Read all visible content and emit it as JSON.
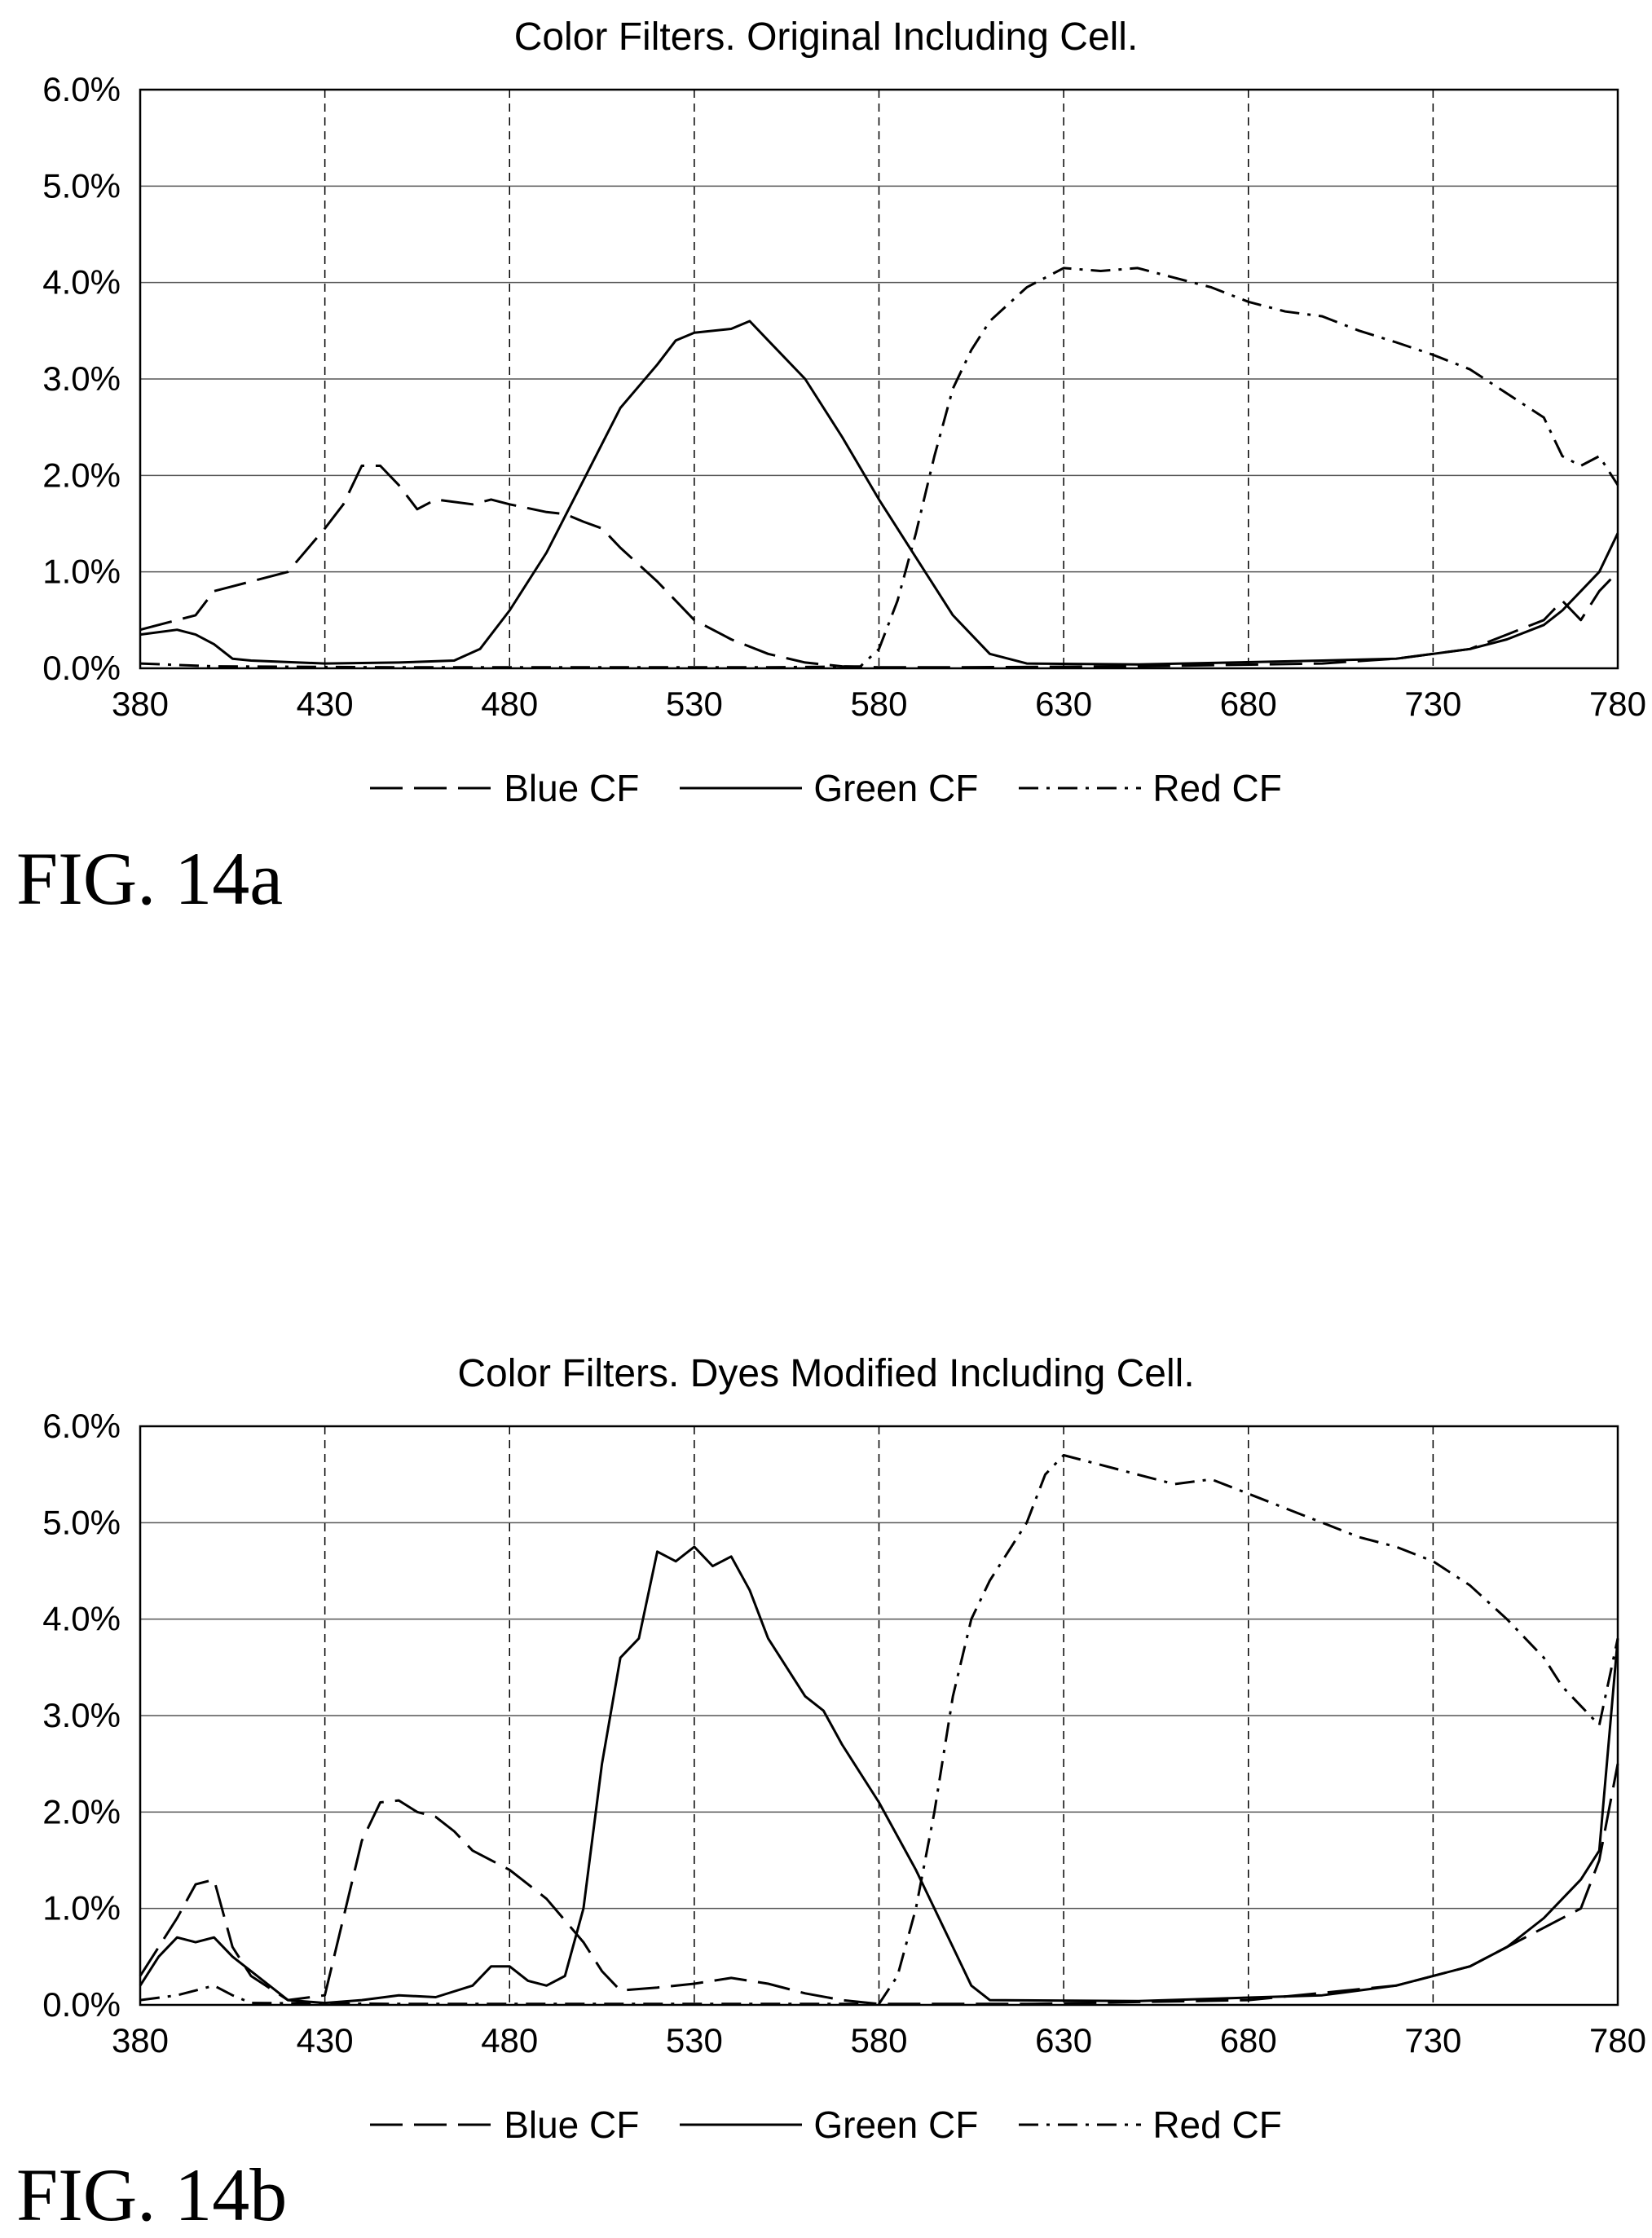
{
  "figures": [
    {
      "label": "FIG. 14a",
      "chart_data": {
        "type": "line",
        "title": "Color Filters. Original Including Cell.",
        "xlabel": "",
        "ylabel": "",
        "xlim": [
          380,
          780
        ],
        "ylim": [
          0,
          6
        ],
        "x_ticks": [
          "380",
          "430",
          "480",
          "530",
          "580",
          "630",
          "680",
          "730",
          "780"
        ],
        "y_ticks": [
          "0.0%",
          "1.0%",
          "2.0%",
          "3.0%",
          "4.0%",
          "5.0%",
          "6.0%"
        ],
        "grid": {
          "horizontal": "solid",
          "vertical": "dashed"
        },
        "legend_position": "bottom",
        "series": [
          {
            "name": "Blue CF",
            "style": "long-dash",
            "points": [
              [
                380,
                0.4
              ],
              [
                390,
                0.5
              ],
              [
                395,
                0.55
              ],
              [
                400,
                0.8
              ],
              [
                405,
                0.85
              ],
              [
                410,
                0.9
              ],
              [
                420,
                1.0
              ],
              [
                430,
                1.45
              ],
              [
                435,
                1.7
              ],
              [
                440,
                2.1
              ],
              [
                445,
                2.1
              ],
              [
                450,
                1.9
              ],
              [
                455,
                1.65
              ],
              [
                460,
                1.75
              ],
              [
                470,
                1.7
              ],
              [
                475,
                1.75
              ],
              [
                480,
                1.7
              ],
              [
                490,
                1.62
              ],
              [
                495,
                1.6
              ],
              [
                500,
                1.52
              ],
              [
                505,
                1.45
              ],
              [
                510,
                1.25
              ],
              [
                520,
                0.9
              ],
              [
                530,
                0.5
              ],
              [
                540,
                0.3
              ],
              [
                550,
                0.15
              ],
              [
                560,
                0.06
              ],
              [
                570,
                0.02
              ],
              [
                580,
                0.01
              ],
              [
                600,
                0.01
              ],
              [
                650,
                0.02
              ],
              [
                700,
                0.05
              ],
              [
                720,
                0.1
              ],
              [
                740,
                0.2
              ],
              [
                750,
                0.35
              ],
              [
                760,
                0.5
              ],
              [
                765,
                0.7
              ],
              [
                770,
                0.5
              ],
              [
                775,
                0.8
              ],
              [
                780,
                1.0
              ]
            ]
          },
          {
            "name": "Green CF",
            "style": "solid",
            "points": [
              [
                380,
                0.35
              ],
              [
                390,
                0.4
              ],
              [
                395,
                0.35
              ],
              [
                400,
                0.25
              ],
              [
                405,
                0.1
              ],
              [
                410,
                0.08
              ],
              [
                430,
                0.05
              ],
              [
                450,
                0.06
              ],
              [
                465,
                0.08
              ],
              [
                472,
                0.2
              ],
              [
                480,
                0.6
              ],
              [
                490,
                1.2
              ],
              [
                500,
                1.95
              ],
              [
                510,
                2.7
              ],
              [
                520,
                3.15
              ],
              [
                525,
                3.4
              ],
              [
                530,
                3.48
              ],
              [
                540,
                3.52
              ],
              [
                545,
                3.6
              ],
              [
                550,
                3.4
              ],
              [
                560,
                3.0
              ],
              [
                570,
                2.4
              ],
              [
                580,
                1.75
              ],
              [
                590,
                1.15
              ],
              [
                600,
                0.55
              ],
              [
                610,
                0.15
              ],
              [
                620,
                0.05
              ],
              [
                650,
                0.04
              ],
              [
                700,
                0.08
              ],
              [
                720,
                0.1
              ],
              [
                730,
                0.15
              ],
              [
                740,
                0.2
              ],
              [
                750,
                0.3
              ],
              [
                760,
                0.45
              ],
              [
                765,
                0.6
              ],
              [
                770,
                0.8
              ],
              [
                775,
                1.0
              ],
              [
                780,
                1.4
              ]
            ]
          },
          {
            "name": "Red CF",
            "style": "dash-dot",
            "points": [
              [
                380,
                0.05
              ],
              [
                400,
                0.02
              ],
              [
                450,
                0.01
              ],
              [
                500,
                0.01
              ],
              [
                550,
                0.01
              ],
              [
                575,
                0.02
              ],
              [
                580,
                0.2
              ],
              [
                585,
                0.7
              ],
              [
                590,
                1.4
              ],
              [
                595,
                2.2
              ],
              [
                600,
                2.9
              ],
              [
                605,
                3.3
              ],
              [
                610,
                3.6
              ],
              [
                620,
                3.95
              ],
              [
                630,
                4.15
              ],
              [
                640,
                4.12
              ],
              [
                650,
                4.15
              ],
              [
                660,
                4.05
              ],
              [
                670,
                3.95
              ],
              [
                680,
                3.8
              ],
              [
                690,
                3.7
              ],
              [
                700,
                3.65
              ],
              [
                710,
                3.5
              ],
              [
                720,
                3.38
              ],
              [
                730,
                3.25
              ],
              [
                740,
                3.1
              ],
              [
                750,
                2.85
              ],
              [
                760,
                2.6
              ],
              [
                765,
                2.2
              ],
              [
                770,
                2.1
              ],
              [
                775,
                2.2
              ],
              [
                780,
                1.9
              ]
            ]
          }
        ]
      }
    },
    {
      "label": "FIG. 14b",
      "chart_data": {
        "type": "line",
        "title": "Color Filters. Dyes Modified Including Cell.",
        "xlabel": "",
        "ylabel": "",
        "xlim": [
          380,
          780
        ],
        "ylim": [
          0,
          6
        ],
        "x_ticks": [
          "380",
          "430",
          "480",
          "530",
          "580",
          "630",
          "680",
          "730",
          "780"
        ],
        "y_ticks": [
          "0.0%",
          "1.0%",
          "2.0%",
          "3.0%",
          "4.0%",
          "5.0%",
          "6.0%"
        ],
        "grid": {
          "horizontal": "solid",
          "vertical": "dashed"
        },
        "legend_position": "bottom",
        "series": [
          {
            "name": "Blue CF",
            "style": "long-dash",
            "points": [
              [
                380,
                0.3
              ],
              [
                385,
                0.6
              ],
              [
                390,
                0.9
              ],
              [
                395,
                1.25
              ],
              [
                400,
                1.3
              ],
              [
                405,
                0.6
              ],
              [
                410,
                0.3
              ],
              [
                420,
                0.05
              ],
              [
                430,
                0.1
              ],
              [
                435,
                0.9
              ],
              [
                440,
                1.7
              ],
              [
                445,
                2.1
              ],
              [
                450,
                2.12
              ],
              [
                455,
                2.0
              ],
              [
                460,
                1.95
              ],
              [
                465,
                1.8
              ],
              [
                470,
                1.6
              ],
              [
                480,
                1.4
              ],
              [
                490,
                1.1
              ],
              [
                500,
                0.65
              ],
              [
                505,
                0.35
              ],
              [
                510,
                0.15
              ],
              [
                520,
                0.18
              ],
              [
                530,
                0.22
              ],
              [
                540,
                0.28
              ],
              [
                550,
                0.22
              ],
              [
                560,
                0.12
              ],
              [
                570,
                0.05
              ],
              [
                580,
                0.01
              ],
              [
                620,
                0.01
              ],
              [
                680,
                0.05
              ],
              [
                720,
                0.2
              ],
              [
                740,
                0.4
              ],
              [
                750,
                0.6
              ],
              [
                760,
                0.8
              ],
              [
                770,
                1.0
              ],
              [
                775,
                1.5
              ],
              [
                780,
                2.5
              ]
            ]
          },
          {
            "name": "Green CF",
            "style": "solid",
            "points": [
              [
                380,
                0.2
              ],
              [
                385,
                0.5
              ],
              [
                390,
                0.7
              ],
              [
                395,
                0.65
              ],
              [
                400,
                0.7
              ],
              [
                405,
                0.5
              ],
              [
                410,
                0.35
              ],
              [
                420,
                0.05
              ],
              [
                430,
                0.02
              ],
              [
                440,
                0.05
              ],
              [
                450,
                0.1
              ],
              [
                460,
                0.08
              ],
              [
                470,
                0.2
              ],
              [
                475,
                0.4
              ],
              [
                480,
                0.4
              ],
              [
                485,
                0.25
              ],
              [
                490,
                0.2
              ],
              [
                495,
                0.3
              ],
              [
                500,
                1.0
              ],
              [
                505,
                2.5
              ],
              [
                510,
                3.6
              ],
              [
                515,
                3.8
              ],
              [
                520,
                4.7
              ],
              [
                525,
                4.6
              ],
              [
                530,
                4.75
              ],
              [
                535,
                4.55
              ],
              [
                540,
                4.65
              ],
              [
                545,
                4.3
              ],
              [
                550,
                3.8
              ],
              [
                560,
                3.2
              ],
              [
                565,
                3.05
              ],
              [
                570,
                2.7
              ],
              [
                580,
                2.1
              ],
              [
                590,
                1.4
              ],
              [
                600,
                0.6
              ],
              [
                605,
                0.2
              ],
              [
                610,
                0.05
              ],
              [
                650,
                0.04
              ],
              [
                700,
                0.1
              ],
              [
                720,
                0.2
              ],
              [
                740,
                0.4
              ],
              [
                750,
                0.6
              ],
              [
                760,
                0.9
              ],
              [
                770,
                1.3
              ],
              [
                775,
                1.6
              ],
              [
                780,
                3.8
              ]
            ]
          },
          {
            "name": "Red CF",
            "style": "dash-dot",
            "points": [
              [
                380,
                0.05
              ],
              [
                390,
                0.1
              ],
              [
                400,
                0.2
              ],
              [
                405,
                0.1
              ],
              [
                410,
                0.02
              ],
              [
                450,
                0.01
              ],
              [
                500,
                0.01
              ],
              [
                560,
                0.01
              ],
              [
                580,
                0.01
              ],
              [
                585,
                0.3
              ],
              [
                590,
                1.0
              ],
              [
                595,
                2.0
              ],
              [
                600,
                3.2
              ],
              [
                605,
                4.0
              ],
              [
                610,
                4.4
              ],
              [
                620,
                5.0
              ],
              [
                625,
                5.5
              ],
              [
                630,
                5.7
              ],
              [
                640,
                5.6
              ],
              [
                650,
                5.5
              ],
              [
                660,
                5.4
              ],
              [
                670,
                5.45
              ],
              [
                680,
                5.3
              ],
              [
                690,
                5.15
              ],
              [
                700,
                5.0
              ],
              [
                710,
                4.85
              ],
              [
                720,
                4.75
              ],
              [
                730,
                4.6
              ],
              [
                740,
                4.35
              ],
              [
                750,
                4.0
              ],
              [
                760,
                3.6
              ],
              [
                765,
                3.3
              ],
              [
                770,
                3.1
              ],
              [
                775,
                2.9
              ],
              [
                780,
                3.8
              ]
            ]
          }
        ]
      }
    }
  ]
}
